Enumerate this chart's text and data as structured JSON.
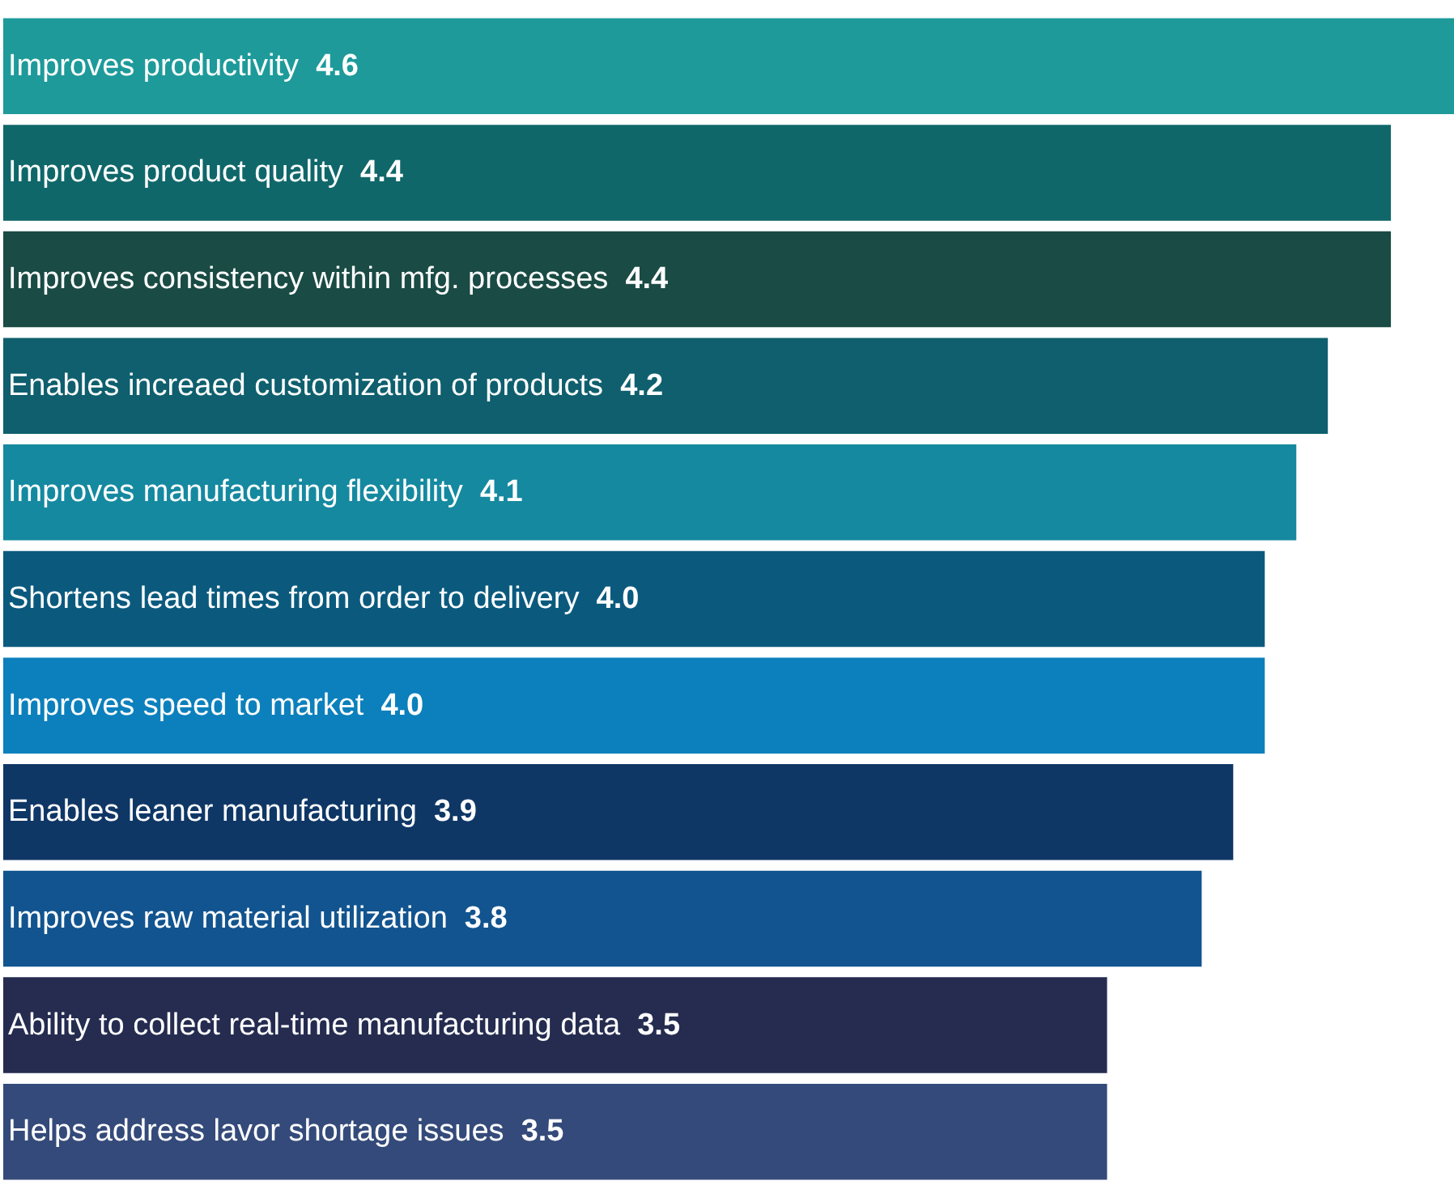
{
  "chart_data": {
    "type": "bar",
    "orientation": "horizontal",
    "categories": [
      "Improves productivity",
      "Improves product quality",
      "Improves consistency within mfg. processes",
      "Enables increaed customization of products",
      "Improves manufacturing flexibility",
      "Shortens lead times from order to delivery",
      "Improves speed to market",
      "Enables leaner manufacturing",
      "Improves raw material utilization",
      "Ability to collect real-time manufacturing data",
      "Helps address lavor shortage issues"
    ],
    "values": [
      4.6,
      4.4,
      4.4,
      4.2,
      4.1,
      4.0,
      4.0,
      3.9,
      3.8,
      3.5,
      3.5
    ],
    "value_labels": [
      "4.6",
      "4.4",
      "4.4",
      "4.2",
      "4.1",
      "4.0",
      "4.0",
      "3.9",
      "3.8",
      "3.5",
      "3.5"
    ],
    "colors": [
      "#1e9a9a",
      "#10676a",
      "#1a4b45",
      "#0f5f6e",
      "#1589a0",
      "#0b5a7e",
      "#0c80bc",
      "#0f3766",
      "#12548f",
      "#252c50",
      "#344a7a"
    ],
    "xlim": [
      0,
      4.6
    ]
  }
}
